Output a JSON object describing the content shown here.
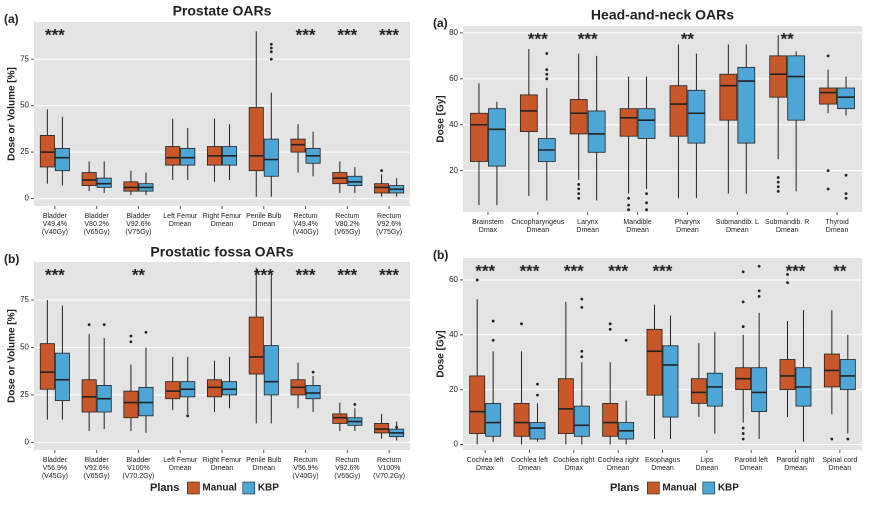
{
  "chart_data": [
    {
      "type": "box",
      "panel": "(a)",
      "title": "Prostate OARs",
      "y_label": "Dose or Volume [%]",
      "ylim": [
        -4,
        95
      ],
      "yticks": [
        0,
        25,
        50,
        75
      ],
      "grid": true,
      "categories": [
        [
          "Bladder",
          "V49.4%",
          "(V40Gy)"
        ],
        [
          "Bladder",
          "V80.2%",
          "(V65Gy)"
        ],
        [
          "Bladder",
          "V92.6%",
          "(V75Gy)"
        ],
        [
          "Left Femur",
          "Dmean"
        ],
        [
          "Right Femur",
          "Dmean"
        ],
        [
          "Penile Bulb",
          "Dmean"
        ],
        [
          "Rectum",
          "V49.4%",
          "(V40Gy)"
        ],
        [
          "Rectum",
          "V80.2%",
          "(V65Gy)"
        ],
        [
          "Rectum",
          "V92.6%",
          "(V75Gy)"
        ]
      ],
      "significance": [
        "***",
        null,
        null,
        null,
        null,
        null,
        "***",
        "***",
        "***"
      ],
      "series": [
        {
          "name": "Manual",
          "color": "#c8572a",
          "values": [
            {
              "low": 8,
              "q1": 17,
              "median": 25,
              "q3": 34,
              "high": 48
            },
            {
              "low": 4,
              "q1": 7,
              "median": 10,
              "q3": 14,
              "high": 20
            },
            {
              "low": 2,
              "q1": 4,
              "median": 6,
              "q3": 9,
              "high": 15
            },
            {
              "low": 10,
              "q1": 18,
              "median": 22,
              "q3": 28,
              "high": 43
            },
            {
              "low": 9,
              "q1": 18,
              "median": 23,
              "q3": 28,
              "high": 43
            },
            {
              "low": 1,
              "q1": 15,
              "median": 23,
              "q3": 49,
              "high": 90
            },
            {
              "low": 14,
              "q1": 25,
              "median": 29,
              "q3": 32,
              "high": 40
            },
            {
              "low": 3,
              "q1": 8,
              "median": 11,
              "q3": 14,
              "high": 20
            },
            {
              "low": 1,
              "q1": 3,
              "median": 6,
              "q3": 8,
              "high": 13,
              "outliers": [
                15
              ]
            }
          ]
        },
        {
          "name": "KBP",
          "color": "#4ea6d6",
          "values": [
            {
              "low": 7,
              "q1": 15,
              "median": 22,
              "q3": 27,
              "high": 44
            },
            {
              "low": 3,
              "q1": 6,
              "median": 8,
              "q3": 11,
              "high": 20
            },
            {
              "low": 2,
              "q1": 4,
              "median": 6,
              "q3": 8,
              "high": 14
            },
            {
              "low": 10,
              "q1": 18,
              "median": 22,
              "q3": 27,
              "high": 38
            },
            {
              "low": 10,
              "q1": 18,
              "median": 23,
              "q3": 28,
              "high": 40
            },
            {
              "low": 1,
              "q1": 12,
              "median": 21,
              "q3": 32,
              "high": 57,
              "outliers": [
                75,
                79,
                81,
                83
              ]
            },
            {
              "low": 12,
              "q1": 19,
              "median": 23,
              "q3": 27,
              "high": 36
            },
            {
              "low": 3,
              "q1": 7,
              "median": 9,
              "q3": 12,
              "high": 17
            },
            {
              "low": 1,
              "q1": 3,
              "median": 5,
              "q3": 7,
              "high": 11
            }
          ]
        }
      ]
    },
    {
      "type": "box",
      "panel": "(b)",
      "title": "Prostatic fossa OARs",
      "y_label": "Dose or Volume [%]",
      "legend_title": "Plans",
      "ylim": [
        -4,
        95
      ],
      "yticks": [
        0,
        25,
        50,
        75
      ],
      "grid": true,
      "categories": [
        [
          "Bladder",
          "V56.9%",
          "(V45Gy)"
        ],
        [
          "Bladder",
          "V92.6%",
          "(V65Gy)"
        ],
        [
          "Bladder",
          "V100%",
          "(V70.2Gy)"
        ],
        [
          "Left Femur",
          "Dmean"
        ],
        [
          "Right Femur",
          "Dmean"
        ],
        [
          "Penile Bulb",
          "Dmean"
        ],
        [
          "Rectum",
          "V56.9%",
          "(V40Gy)"
        ],
        [
          "Rectum",
          "V92.6%",
          "(V65Gy)"
        ],
        [
          "Rectum",
          "V100%",
          "(V70.2Gy)"
        ]
      ],
      "significance": [
        "***",
        null,
        "**",
        null,
        null,
        "***",
        "***",
        "***",
        "***"
      ],
      "series": [
        {
          "name": "Manual",
          "color": "#c8572a",
          "values": [
            {
              "low": 12,
              "q1": 28,
              "median": 37,
              "q3": 52,
              "high": 75
            },
            {
              "low": 6,
              "q1": 16,
              "median": 24,
              "q3": 33,
              "high": 57,
              "outliers": [
                62
              ]
            },
            {
              "low": 6,
              "q1": 13,
              "median": 21,
              "q3": 27,
              "high": 41,
              "outliers": [
                53,
                56
              ]
            },
            {
              "low": 17,
              "q1": 23,
              "median": 27,
              "q3": 32,
              "high": 45
            },
            {
              "low": 16,
              "q1": 24,
              "median": 29,
              "q3": 33,
              "high": 43
            },
            {
              "low": 10,
              "q1": 36,
              "median": 45,
              "q3": 66,
              "high": 92
            },
            {
              "low": 18,
              "q1": 25,
              "median": 29,
              "q3": 33,
              "high": 42
            },
            {
              "low": 6,
              "q1": 10,
              "median": 13,
              "q3": 15,
              "high": 21
            },
            {
              "low": 2,
              "q1": 5,
              "median": 7,
              "q3": 10,
              "high": 15
            }
          ]
        },
        {
          "name": "KBP",
          "color": "#4ea6d6",
          "values": [
            {
              "low": 12,
              "q1": 22,
              "median": 33,
              "q3": 47,
              "high": 72
            },
            {
              "low": 7,
              "q1": 16,
              "median": 23,
              "q3": 30,
              "high": 55,
              "outliers": [
                62
              ]
            },
            {
              "low": 5,
              "q1": 14,
              "median": 21,
              "q3": 29,
              "high": 50,
              "outliers": [
                58
              ]
            },
            {
              "low": 15,
              "q1": 24,
              "median": 28,
              "q3": 32,
              "high": 45,
              "outliers": [
                14
              ]
            },
            {
              "low": 18,
              "q1": 25,
              "median": 28,
              "q3": 32,
              "high": 45
            },
            {
              "low": 10,
              "q1": 25,
              "median": 32,
              "q3": 51,
              "high": 90
            },
            {
              "low": 16,
              "q1": 23,
              "median": 26,
              "q3": 30,
              "high": 35,
              "outliers": [
                37
              ]
            },
            {
              "low": 6,
              "q1": 9,
              "median": 11,
              "q3": 13,
              "high": 18,
              "outliers": [
                20
              ]
            },
            {
              "low": 1,
              "q1": 3,
              "median": 5,
              "q3": 7,
              "high": 11,
              "outliers": [
                8
              ]
            }
          ]
        }
      ]
    },
    {
      "type": "box",
      "panel": "(a)",
      "title": "Head-and-neck OARs",
      "y_label": "Dose  [Gy]",
      "ylim": [
        2,
        83
      ],
      "yticks": [
        20,
        40,
        60,
        80
      ],
      "grid": true,
      "categories": [
        [
          "Brainstem",
          "Dmax"
        ],
        [
          "Cricopharyngeus",
          "Dmean"
        ],
        [
          "Larynx",
          "Dmean"
        ],
        [
          "Mandible",
          "Dmean"
        ],
        [
          "Pharynx",
          "Dmean"
        ],
        [
          "Submandib. L",
          "Dmean"
        ],
        [
          "Submandib. R",
          "Dmean"
        ],
        [
          "Thyroid",
          "Dmean"
        ]
      ],
      "significance": [
        null,
        "***",
        "***",
        null,
        "**",
        null,
        "**",
        null
      ],
      "series": [
        {
          "name": "Manual",
          "color": "#c8572a",
          "values": [
            {
              "low": 5,
              "q1": 24,
              "median": 40,
              "q3": 45,
              "high": 58
            },
            {
              "low": 9,
              "q1": 37,
              "median": 46,
              "q3": 53,
              "high": 73
            },
            {
              "low": 16,
              "q1": 36,
              "median": 45,
              "q3": 51,
              "high": 71,
              "outliers": [
                8,
                10,
                12,
                14
              ]
            },
            {
              "low": 10,
              "q1": 35,
              "median": 43,
              "q3": 47,
              "high": 61,
              "outliers": [
                3,
                5,
                8
              ]
            },
            {
              "low": 8,
              "q1": 35,
              "median": 49,
              "q3": 57,
              "high": 75
            },
            {
              "low": 10,
              "q1": 42,
              "median": 57,
              "q3": 62,
              "high": 75
            },
            {
              "low": 25,
              "q1": 52,
              "median": 62,
              "q3": 70,
              "high": 79,
              "outliers": [
                11,
                13,
                15,
                17
              ]
            },
            {
              "low": 45,
              "q1": 49,
              "median": 54,
              "q3": 56,
              "high": 64,
              "outliers": [
                12,
                20,
                70
              ]
            }
          ]
        },
        {
          "name": "KBP",
          "color": "#4ea6d6",
          "values": [
            {
              "low": 5,
              "q1": 22,
              "median": 38,
              "q3": 47,
              "high": 50
            },
            {
              "low": 7,
              "q1": 24,
              "median": 29,
              "q3": 34,
              "high": 56,
              "outliers": [
                60,
                62,
                64,
                71
              ]
            },
            {
              "low": 7,
              "q1": 28,
              "median": 36,
              "q3": 46,
              "high": 70
            },
            {
              "low": 12,
              "q1": 34,
              "median": 42,
              "q3": 47,
              "high": 61,
              "outliers": [
                3,
                6,
                10
              ]
            },
            {
              "low": 8,
              "q1": 32,
              "median": 45,
              "q3": 55,
              "high": 71
            },
            {
              "low": 10,
              "q1": 32,
              "median": 59,
              "q3": 65,
              "high": 75
            },
            {
              "low": 11,
              "q1": 42,
              "median": 61,
              "q3": 70,
              "high": 72
            },
            {
              "low": 44,
              "q1": 47,
              "median": 52,
              "q3": 56,
              "high": 61,
              "outliers": [
                8,
                10,
                18
              ]
            }
          ]
        }
      ]
    },
    {
      "type": "box",
      "panel": "(b)",
      "title": "",
      "y_label": "Dose  [Gy]",
      "legend_title": "Plans",
      "ylim": [
        -2,
        68
      ],
      "yticks": [
        0,
        20,
        40,
        60
      ],
      "grid": true,
      "categories": [
        [
          "Cochlea left",
          "Dmax"
        ],
        [
          "Cochlea left",
          "Dmean"
        ],
        [
          "Cochlea right",
          "Dmax"
        ],
        [
          "Cochlea right",
          "Dmean"
        ],
        [
          "Esophagus",
          "Dmean"
        ],
        [
          "Lips",
          "Dmean"
        ],
        [
          "Parotid left",
          "Dmean"
        ],
        [
          "Parotid right",
          "Dmean"
        ],
        [
          "Spinal cord",
          "Dmean"
        ]
      ],
      "significance": [
        "***",
        "***",
        "***",
        "***",
        "***",
        null,
        null,
        "***",
        "**"
      ],
      "series": [
        {
          "name": "Manual",
          "color": "#c8572a",
          "values": [
            {
              "low": 0,
              "q1": 4,
              "median": 12,
              "q3": 25,
              "high": 53,
              "outliers": [
                60
              ]
            },
            {
              "low": 0,
              "q1": 3,
              "median": 8,
              "q3": 15,
              "high": 34,
              "outliers": [
                44
              ]
            },
            {
              "low": 0,
              "q1": 4,
              "median": 13,
              "q3": 24,
              "high": 52
            },
            {
              "low": 0,
              "q1": 3,
              "median": 8,
              "q3": 15,
              "high": 30,
              "outliers": [
                42,
                44
              ]
            },
            {
              "low": 2,
              "q1": 18,
              "median": 34,
              "q3": 42,
              "high": 51
            },
            {
              "low": 10,
              "q1": 15,
              "median": 19,
              "q3": 24,
              "high": 37
            },
            {
              "low": 8,
              "q1": 20,
              "median": 24,
              "q3": 28,
              "high": 40,
              "outliers": [
                2,
                4,
                6,
                43,
                52,
                63
              ]
            },
            {
              "low": 10,
              "q1": 20,
              "median": 25,
              "q3": 31,
              "high": 45,
              "outliers": [
                59,
                62
              ]
            },
            {
              "low": 11,
              "q1": 21,
              "median": 27,
              "q3": 33,
              "high": 49,
              "outliers": [
                2
              ]
            }
          ]
        },
        {
          "name": "KBP",
          "color": "#4ea6d6",
          "values": [
            {
              "low": 1,
              "q1": 3,
              "median": 8,
              "q3": 15,
              "high": 34,
              "outliers": [
                38,
                45
              ]
            },
            {
              "low": 1,
              "q1": 2,
              "median": 6,
              "q3": 8,
              "high": 15,
              "outliers": [
                18,
                22
              ]
            },
            {
              "low": 0,
              "q1": 3,
              "median": 7,
              "q3": 14,
              "high": 30,
              "outliers": [
                32,
                34,
                50,
                53
              ]
            },
            {
              "low": 0,
              "q1": 2,
              "median": 5,
              "q3": 8,
              "high": 16,
              "outliers": [
                38
              ]
            },
            {
              "low": 2,
              "q1": 10,
              "median": 29,
              "q3": 36,
              "high": 47
            },
            {
              "low": 4,
              "q1": 14,
              "median": 21,
              "q3": 26,
              "high": 41
            },
            {
              "low": 2,
              "q1": 12,
              "median": 19,
              "q3": 28,
              "high": 48,
              "outliers": [
                54,
                56,
                65
              ]
            },
            {
              "low": 1,
              "q1": 14,
              "median": 21,
              "q3": 28,
              "high": 49
            },
            {
              "low": 4,
              "q1": 20,
              "median": 25,
              "q3": 31,
              "high": 40,
              "outliers": [
                2
              ]
            }
          ]
        }
      ]
    }
  ]
}
